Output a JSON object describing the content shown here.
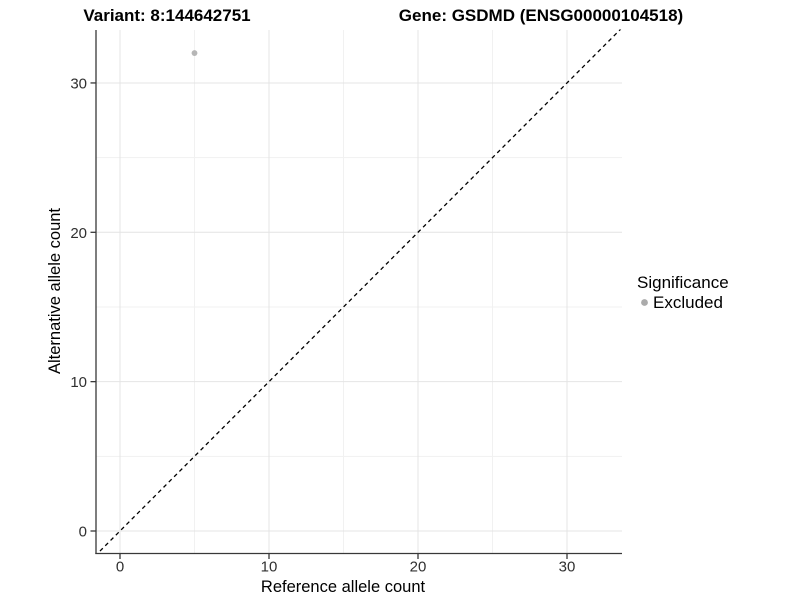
{
  "titles": {
    "variant": "Variant: 8:144642751",
    "gene": "Gene: GSDMD (ENSG00000104518)"
  },
  "chart_data": {
    "type": "scatter",
    "xlabel": "Reference allele count",
    "ylabel": "Alternative allele count",
    "xlim": [
      -1.7,
      33.8
    ],
    "ylim": [
      -1.7,
      33.8
    ],
    "xticks": [
      0,
      10,
      20,
      30
    ],
    "yticks": [
      0,
      10,
      20,
      30
    ],
    "minor_xticks": [
      5,
      15,
      25
    ],
    "minor_yticks": [
      5,
      15,
      25
    ],
    "grid": true,
    "points": [
      {
        "x": 5,
        "y": 32,
        "series": "Excluded"
      }
    ],
    "identity_line": {
      "style": "dashed",
      "from": [
        -1.7,
        -1.7
      ],
      "to": [
        33.8,
        33.8
      ]
    },
    "legend": {
      "title": "Significance",
      "position": "right",
      "items": [
        {
          "label": "Excluded",
          "marker": "circle"
        }
      ]
    }
  },
  "colors": {
    "point": "#b6b6b6",
    "legend_marker": "#ababab",
    "grid_major": "#e4e4e4",
    "grid_minor": "#f1f1f1",
    "axis_line": "#383838",
    "identity_line": "#000000",
    "background": "#ffffff"
  }
}
